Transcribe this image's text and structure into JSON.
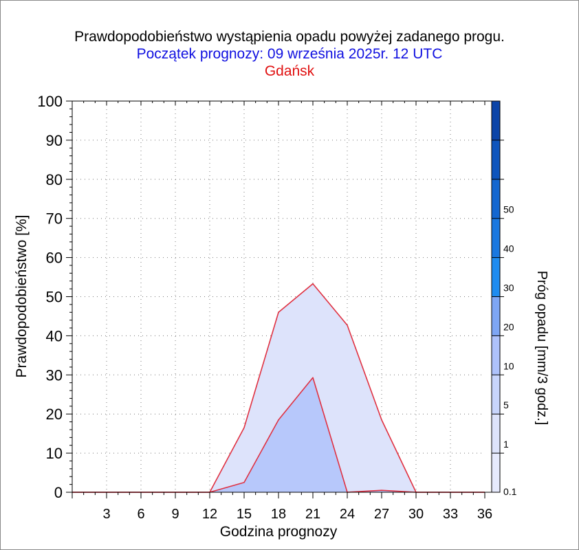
{
  "header": {
    "title": "Prawdopodobieństwo wystąpienia opadu powyżej zadanego progu.",
    "subtitle": "Początek prognozy: 09 września 2025r. 12 UTC",
    "location": "Gdańsk"
  },
  "colors": {
    "subtitle": "#1010e0",
    "location": "#e01010",
    "series_line": "#e03040"
  },
  "chart_data": {
    "type": "area",
    "xlabel": "Godzina prognozy",
    "ylabel": "Prawdopodobieństwo [%]",
    "xlim": [
      0,
      36
    ],
    "ylim": [
      0,
      100
    ],
    "xticks": [
      3,
      6,
      9,
      12,
      15,
      18,
      21,
      24,
      27,
      30,
      33,
      36
    ],
    "yticks": [
      0,
      10,
      20,
      30,
      40,
      50,
      60,
      70,
      80,
      90,
      100
    ],
    "grid": true,
    "x": [
      0,
      3,
      6,
      9,
      12,
      15,
      18,
      21,
      24,
      27,
      30,
      33,
      36
    ],
    "series": [
      {
        "threshold": "0.1",
        "color": "#dde3fb",
        "values": [
          0,
          0,
          0,
          0,
          0,
          16.5,
          46,
          53.3,
          42.7,
          18.5,
          0,
          0,
          0
        ]
      },
      {
        "threshold": "1",
        "color": "#b7c8fb",
        "values": [
          0,
          0,
          0,
          0,
          0,
          2.5,
          18.5,
          29.3,
          0,
          0.5,
          0,
          0,
          0
        ]
      }
    ],
    "colorbar": {
      "label": "Próg opadu [mm/3 godz.]",
      "levels": [
        "0.1",
        "1",
        "5",
        "10",
        "20",
        "30",
        "40",
        "50"
      ],
      "colors": [
        "#e6eafd",
        "#dde3fb",
        "#c8d5fc",
        "#aec2fb",
        "#7ea6f4",
        "#1e8cf0",
        "#1a78e0",
        "#1467d0",
        "#0e55bd",
        "#0b44a8"
      ]
    }
  }
}
